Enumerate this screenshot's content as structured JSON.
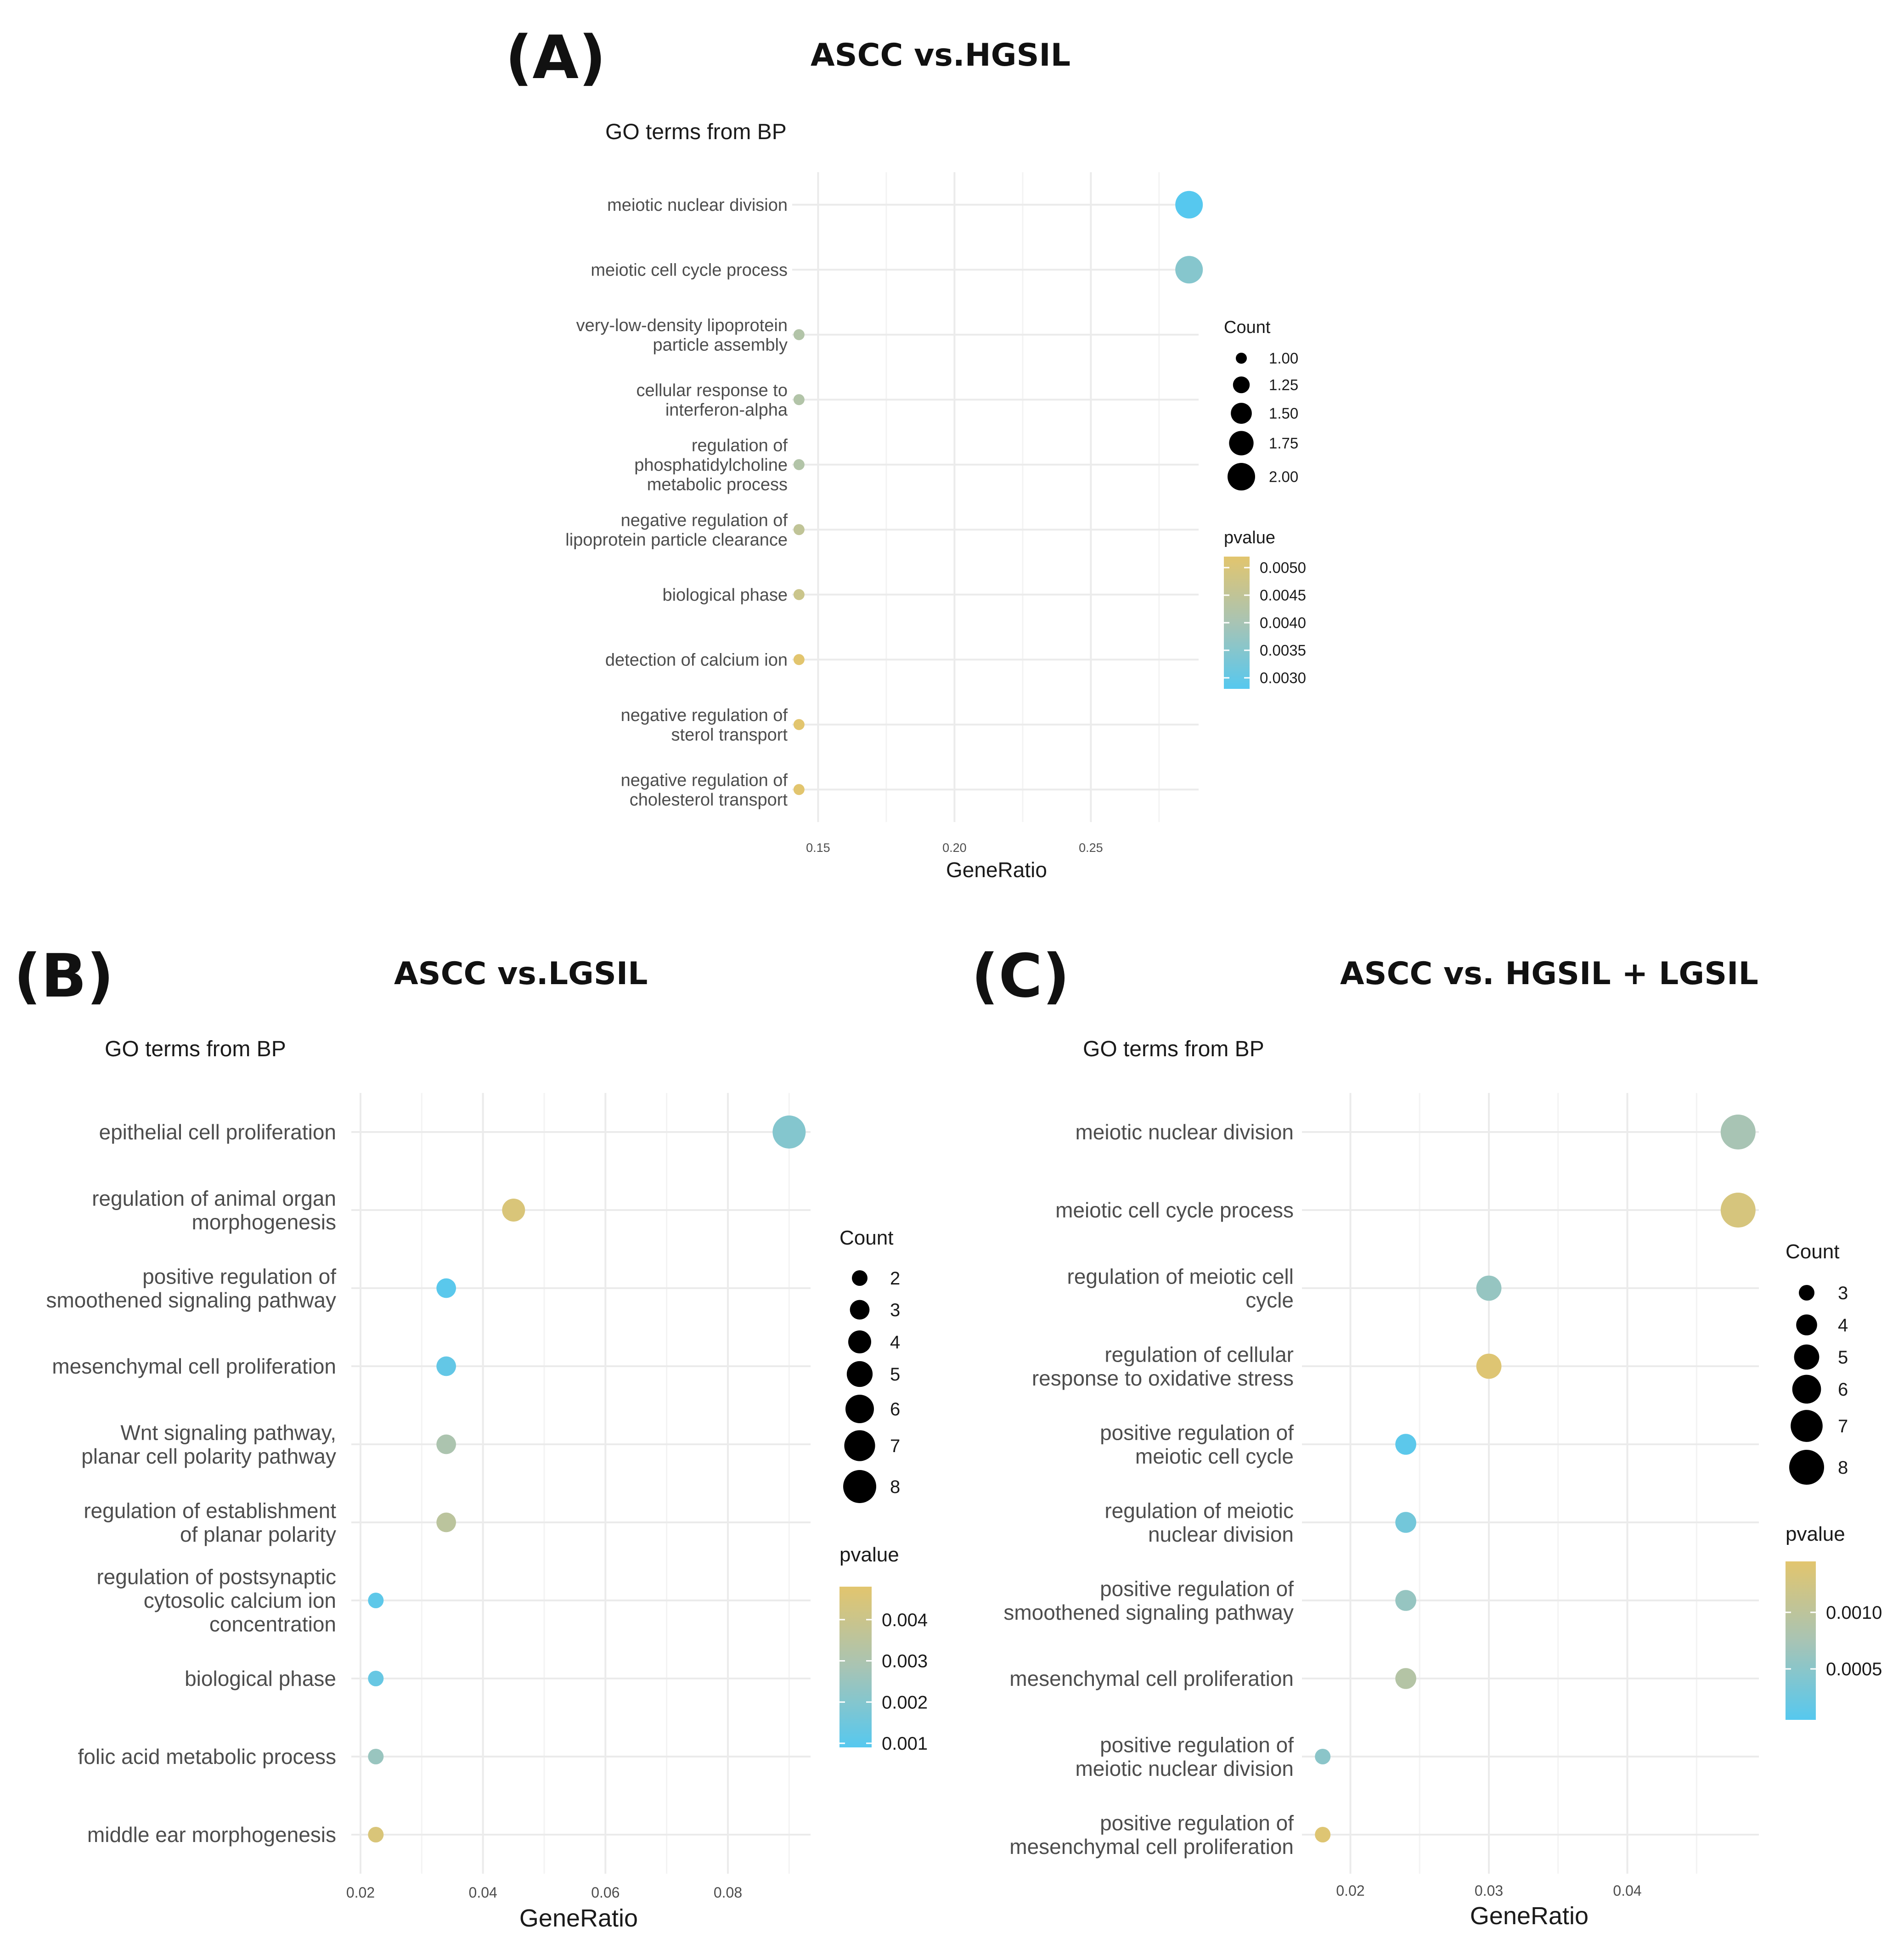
{
  "chart_data": [
    {
      "type": "scatter",
      "panel": "(A)",
      "title": "ASCC vs.HGSIL",
      "subtitle": "GO terms from BP",
      "xlabel": "GeneRatio",
      "xticks": [
        0.15,
        0.2,
        0.25
      ],
      "xtick_labels": [
        "0.15",
        "0.20",
        "0.25"
      ],
      "categories": [
        "meiotic nuclear division",
        "meiotic cell cycle process",
        "very-low-density lipoprotein\nparticle assembly",
        "cellular response to\ninterferon-alpha",
        "regulation of\nphosphatidylcholine\nmetabolic process",
        "negative regulation of\nlipoprotein particle clearance",
        "biological phase",
        "detection of calcium ion",
        "negative regulation of\nsterol transport",
        "negative regulation of\ncholesterol transport"
      ],
      "gene_ratio": [
        0.286,
        0.286,
        0.143,
        0.143,
        0.143,
        0.143,
        0.143,
        0.143,
        0.143,
        0.143
      ],
      "count": [
        2,
        2,
        1,
        1,
        1,
        1,
        1,
        1,
        1,
        1
      ],
      "pvalue": [
        0.0028,
        0.0035,
        0.0042,
        0.0042,
        0.0042,
        0.0045,
        0.0047,
        0.0052,
        0.0052,
        0.0052
      ],
      "size_legend": {
        "title": "Count",
        "breaks": [
          1.0,
          1.25,
          1.5,
          1.75,
          2.0
        ],
        "labels": [
          "1.00",
          "1.25",
          "1.50",
          "1.75",
          "2.00"
        ],
        "range": [
          1,
          2
        ]
      },
      "color_legend": {
        "title": "pvalue",
        "breaks": [
          0.005,
          0.0045,
          0.004,
          0.0035,
          0.003
        ],
        "labels": [
          "0.0050",
          "0.0045",
          "0.0040",
          "0.0035",
          "0.0030"
        ],
        "range": [
          0.0028,
          0.0052
        ]
      }
    },
    {
      "type": "scatter",
      "panel": "(B)",
      "title": "ASCC vs.LGSIL",
      "subtitle": "GO terms from BP",
      "xlabel": "GeneRatio",
      "xticks": [
        0.02,
        0.04,
        0.06,
        0.08
      ],
      "xtick_labels": [
        "0.02",
        "0.04",
        "0.06",
        "0.08"
      ],
      "categories": [
        "epithelial cell proliferation",
        "regulation of animal organ\nmorphogenesis",
        "positive regulation of\nsmoothened signaling pathway",
        "mesenchymal cell proliferation",
        "Wnt signaling pathway,\nplanar cell polarity pathway",
        "regulation of establishment\nof planar polarity",
        "regulation of postsynaptic\ncytosolic calcium ion\nconcentration",
        "biological phase",
        "folic acid metabolic process",
        "middle ear morphogenesis"
      ],
      "gene_ratio": [
        0.09,
        0.045,
        0.034,
        0.034,
        0.034,
        0.034,
        0.0225,
        0.0225,
        0.0225,
        0.0225
      ],
      "count": [
        8,
        4,
        3,
        3,
        3,
        3,
        2,
        2,
        2,
        2
      ],
      "pvalue": [
        0.002,
        0.0045,
        0.001,
        0.0012,
        0.003,
        0.0035,
        0.0011,
        0.0013,
        0.0025,
        0.0045
      ],
      "size_legend": {
        "title": "Count",
        "breaks": [
          2,
          3,
          4,
          5,
          6,
          7,
          8
        ],
        "labels": [
          "2",
          "3",
          "4",
          "5",
          "6",
          "7",
          "8"
        ],
        "range": [
          2,
          8
        ]
      },
      "color_legend": {
        "title": "pvalue",
        "breaks": [
          0.004,
          0.003,
          0.002,
          0.001
        ],
        "labels": [
          "0.004",
          "0.003",
          "0.002",
          "0.001"
        ],
        "range": [
          0.0009,
          0.0048
        ]
      }
    },
    {
      "type": "scatter",
      "panel": "(C)",
      "title": "ASCC vs. HGSIL + LGSIL",
      "subtitle": "GO terms from BP",
      "xlabel": "GeneRatio",
      "xticks": [
        0.02,
        0.03,
        0.04
      ],
      "xtick_labels": [
        "0.02",
        "0.03",
        "0.04"
      ],
      "categories": [
        "meiotic nuclear division",
        "meiotic cell cycle process",
        "regulation of meiotic cell\ncycle",
        "regulation of cellular\nresponse to oxidative stress",
        "positive regulation of\nmeiotic cell cycle",
        "regulation of meiotic\nnuclear division",
        "positive regulation of\nsmoothened signaling pathway",
        "mesenchymal cell proliferation",
        "positive regulation of\nmeiotic nuclear division",
        "positive regulation of\nmesenchymal cell proliferation"
      ],
      "gene_ratio": [
        0.048,
        0.048,
        0.03,
        0.03,
        0.024,
        0.024,
        0.024,
        0.024,
        0.018,
        0.018
      ],
      "count": [
        8,
        8,
        5,
        5,
        4,
        4,
        4,
        4,
        3,
        3
      ],
      "pvalue": [
        0.00075,
        0.0013,
        0.0006,
        0.0014,
        0.0001,
        0.0003,
        0.0006,
        0.0009,
        0.0005,
        0.0014
      ],
      "size_legend": {
        "title": "Count",
        "breaks": [
          3,
          4,
          5,
          6,
          7,
          8
        ],
        "labels": [
          "3",
          "4",
          "5",
          "6",
          "7",
          "8"
        ],
        "range": [
          3,
          8
        ]
      },
      "color_legend": {
        "title": "pvalue",
        "breaks": [
          0.001,
          0.0005
        ],
        "labels": [
          "0.0010",
          "0.0005"
        ],
        "range": [
          5e-05,
          0.00145
        ]
      }
    }
  ],
  "colors": {
    "low_p": "#56c8ef",
    "mid_p": "#a8c4b4",
    "high_p": "#e2c56e",
    "grid": "#ebebeb",
    "text": "#4d4d4d"
  }
}
